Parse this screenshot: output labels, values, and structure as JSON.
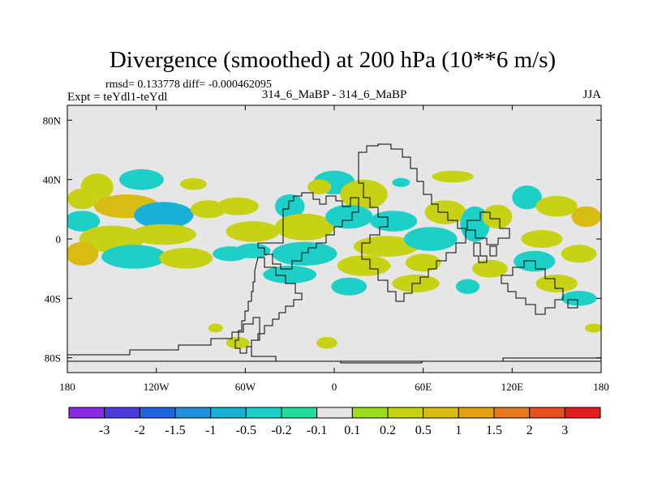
{
  "chart_data": {
    "type": "heatmap",
    "title": "Divergence (smoothed) at 200 hPa (10**6 m/s)",
    "stats_label": "rmsd= 0.133778 diff= -0.000462095",
    "left_label": "Expt = teYdl1-teYdl",
    "center_label": "314_6_MaBP - 314_6_MaBP",
    "right_label": "JJA",
    "x_ticks": [
      "180",
      "120W",
      "60W",
      "0",
      "60E",
      "120E",
      "180"
    ],
    "x_tick_values": [
      -180,
      -120,
      -60,
      0,
      60,
      120,
      180
    ],
    "y_ticks": [
      "80N",
      "40N",
      "0",
      "40S",
      "80S"
    ],
    "y_tick_values": [
      80,
      40,
      0,
      -40,
      -80
    ],
    "xlim": [
      -180,
      180
    ],
    "ylim": [
      -90,
      90
    ],
    "colorbar": {
      "colors": [
        "#8a2be2",
        "#4b3ddb",
        "#1e64dc",
        "#1e90dc",
        "#19b0d8",
        "#1ecfc8",
        "#22dd9c",
        "#e6e6e6",
        "#9bdc1e",
        "#c8d214",
        "#d8bc14",
        "#e6a014",
        "#e8781e",
        "#e6501e",
        "#e01e1e"
      ],
      "labels": [
        "-3",
        "-2",
        "-1.5",
        "-1",
        "-0.5",
        "-0.2",
        "-0.1",
        "0.1",
        "0.2",
        "0.5",
        "1",
        "1.5",
        "2",
        "3"
      ]
    },
    "features": [
      {
        "lon": -160,
        "lat": 35,
        "rx": 11,
        "ry": 9,
        "level": "0.2"
      },
      {
        "lon": -130,
        "lat": 40,
        "rx": 15,
        "ry": 7,
        "level": "-0.2"
      },
      {
        "lon": -95,
        "lat": 37,
        "rx": 9,
        "ry": 4,
        "level": "0.2"
      },
      {
        "lon": -170,
        "lat": 27,
        "rx": 10,
        "ry": 7,
        "level": "0.2"
      },
      {
        "lon": -140,
        "lat": 22,
        "rx": 22,
        "ry": 8,
        "level": "0.5"
      },
      {
        "lon": -115,
        "lat": 16,
        "rx": 20,
        "ry": 9,
        "level": "-0.5"
      },
      {
        "lon": -85,
        "lat": 20,
        "rx": 12,
        "ry": 6,
        "level": "0.2"
      },
      {
        "lon": -170,
        "lat": 12,
        "rx": 12,
        "ry": 7,
        "level": "-0.2"
      },
      {
        "lon": -150,
        "lat": 0,
        "rx": 22,
        "ry": 9,
        "level": "0.2"
      },
      {
        "lon": -115,
        "lat": 3,
        "rx": 22,
        "ry": 7,
        "level": "0.2"
      },
      {
        "lon": -170,
        "lat": -10,
        "rx": 11,
        "ry": 8,
        "level": "0.5"
      },
      {
        "lon": -135,
        "lat": -12,
        "rx": 22,
        "ry": 8,
        "level": "-0.2"
      },
      {
        "lon": -100,
        "lat": -13,
        "rx": 18,
        "ry": 7,
        "level": "0.2"
      },
      {
        "lon": -70,
        "lat": -10,
        "rx": 12,
        "ry": 5,
        "level": "-0.2"
      },
      {
        "lon": -65,
        "lat": 22,
        "rx": 14,
        "ry": 6,
        "level": "0.2"
      },
      {
        "lon": -30,
        "lat": 22,
        "rx": 10,
        "ry": 8,
        "level": "-0.2"
      },
      {
        "lon": -55,
        "lat": 5,
        "rx": 18,
        "ry": 7,
        "level": "0.2"
      },
      {
        "lon": -20,
        "lat": 8,
        "rx": 20,
        "ry": 9,
        "level": "0.2"
      },
      {
        "lon": -55,
        "lat": -8,
        "rx": 12,
        "ry": 5,
        "level": "-0.2"
      },
      {
        "lon": -20,
        "lat": -10,
        "rx": 22,
        "ry": 8,
        "level": "-0.2"
      },
      {
        "lon": -30,
        "lat": -24,
        "rx": 18,
        "ry": 6,
        "level": "-0.2"
      },
      {
        "lon": 0,
        "lat": 38,
        "rx": 14,
        "ry": 8,
        "level": "-0.2"
      },
      {
        "lon": -10,
        "lat": 35,
        "rx": 8,
        "ry": 5,
        "level": "0.2"
      },
      {
        "lon": 20,
        "lat": 30,
        "rx": 16,
        "ry": 10,
        "level": "0.2"
      },
      {
        "lon": 45,
        "lat": 38,
        "rx": 6,
        "ry": 3,
        "level": "-0.2"
      },
      {
        "lon": 10,
        "lat": 15,
        "rx": 16,
        "ry": 8,
        "level": "-0.2"
      },
      {
        "lon": 40,
        "lat": 12,
        "rx": 16,
        "ry": 7,
        "level": "-0.2"
      },
      {
        "lon": 75,
        "lat": 18,
        "rx": 14,
        "ry": 8,
        "level": "0.2"
      },
      {
        "lon": 35,
        "lat": -5,
        "rx": 22,
        "ry": 7,
        "level": "0.2"
      },
      {
        "lon": 65,
        "lat": 0,
        "rx": 18,
        "ry": 8,
        "level": "-0.2"
      },
      {
        "lon": 20,
        "lat": -18,
        "rx": 18,
        "ry": 7,
        "level": "0.2"
      },
      {
        "lon": 60,
        "lat": -16,
        "rx": 12,
        "ry": 6,
        "level": "0.2"
      },
      {
        "lon": 10,
        "lat": -32,
        "rx": 12,
        "ry": 6,
        "level": "-0.2"
      },
      {
        "lon": 55,
        "lat": -30,
        "rx": 16,
        "ry": 6,
        "level": "0.2"
      },
      {
        "lon": 90,
        "lat": -32,
        "rx": 8,
        "ry": 5,
        "level": "-0.2"
      },
      {
        "lon": 105,
        "lat": -20,
        "rx": 12,
        "ry": 6,
        "level": "0.2"
      },
      {
        "lon": 80,
        "lat": 42,
        "rx": 14,
        "ry": 4,
        "level": "0.2"
      },
      {
        "lon": 95,
        "lat": 10,
        "rx": 10,
        "ry": 12,
        "level": "-0.2"
      },
      {
        "lon": 110,
        "lat": 15,
        "rx": 10,
        "ry": 8,
        "level": "0.2"
      },
      {
        "lon": 140,
        "lat": 0,
        "rx": 14,
        "ry": 6,
        "level": "0.2"
      },
      {
        "lon": 135,
        "lat": -15,
        "rx": 14,
        "ry": 7,
        "level": "-0.2"
      },
      {
        "lon": 165,
        "lat": -10,
        "rx": 12,
        "ry": 6,
        "level": "0.2"
      },
      {
        "lon": 150,
        "lat": -30,
        "rx": 14,
        "ry": 6,
        "level": "0.2"
      },
      {
        "lon": 165,
        "lat": -40,
        "rx": 12,
        "ry": 5,
        "level": "-0.2"
      },
      {
        "lon": 130,
        "lat": 28,
        "rx": 10,
        "ry": 8,
        "level": "-0.2"
      },
      {
        "lon": 150,
        "lat": 22,
        "rx": 14,
        "ry": 7,
        "level": "0.2"
      },
      {
        "lon": 170,
        "lat": 15,
        "rx": 10,
        "ry": 7,
        "level": "0.5"
      },
      {
        "lon": -80,
        "lat": -60,
        "rx": 5,
        "ry": 3,
        "level": "0.2"
      },
      {
        "lon": -65,
        "lat": -70,
        "rx": 8,
        "ry": 4,
        "level": "0.2"
      },
      {
        "lon": -5,
        "lat": -70,
        "rx": 7,
        "ry": 4,
        "level": "0.2"
      },
      {
        "lon": 175,
        "lat": -60,
        "rx": 6,
        "ry": 3,
        "level": "0.2"
      }
    ]
  }
}
